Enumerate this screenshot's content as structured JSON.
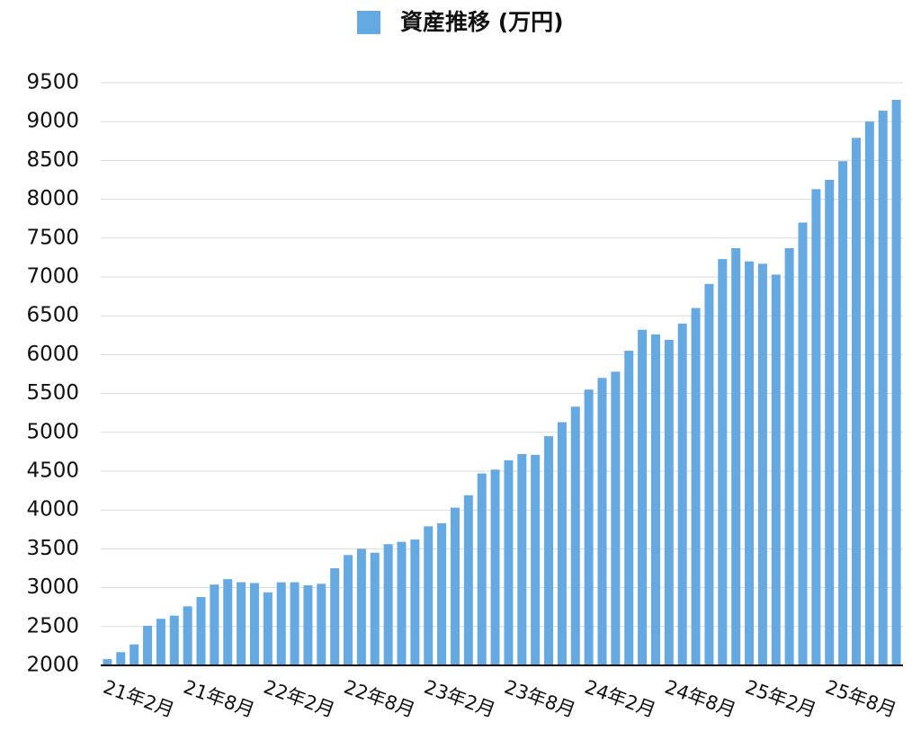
{
  "chart_data": {
    "type": "bar",
    "categories": [
      "21年2月",
      null,
      null,
      null,
      null,
      null,
      "21年8月",
      null,
      null,
      null,
      null,
      null,
      "22年2月",
      null,
      null,
      null,
      null,
      null,
      "22年8月",
      null,
      null,
      null,
      null,
      null,
      "23年2月",
      null,
      null,
      null,
      null,
      null,
      "23年8月",
      null,
      null,
      null,
      null,
      null,
      "24年2月",
      null,
      null,
      null,
      null,
      null,
      "24年8月",
      null,
      null,
      null,
      null,
      null,
      "25年2月",
      null,
      null,
      null,
      null,
      null,
      "25年8月",
      null,
      null,
      null,
      null,
      null
    ],
    "series": [
      {
        "name": "資産推移 (万円)",
        "color": "#65a9e3",
        "values": [
          2080,
          2170,
          2270,
          2510,
          2600,
          2640,
          2760,
          2880,
          3040,
          3110,
          3070,
          3060,
          2940,
          3070,
          3070,
          3030,
          3050,
          3250,
          3420,
          3500,
          3450,
          3560,
          3590,
          3620,
          3790,
          3830,
          4030,
          4190,
          4470,
          4520,
          4640,
          4720,
          4710,
          4950,
          5130,
          5330,
          5550,
          5700,
          5780,
          6050,
          6320,
          6260,
          6190,
          6400,
          6600,
          6910,
          7230,
          7370,
          7200,
          7170,
          7030,
          7370,
          7700,
          8130,
          8250,
          8490,
          8790,
          9000,
          9140,
          9280
        ]
      }
    ],
    "ylim": [
      2000,
      9500
    ],
    "yticks": [
      2000,
      2500,
      3000,
      3500,
      4000,
      4500,
      5000,
      5500,
      6000,
      6500,
      7000,
      7500,
      8000,
      8500,
      9000,
      9500
    ],
    "grid": true,
    "legend": "top"
  }
}
